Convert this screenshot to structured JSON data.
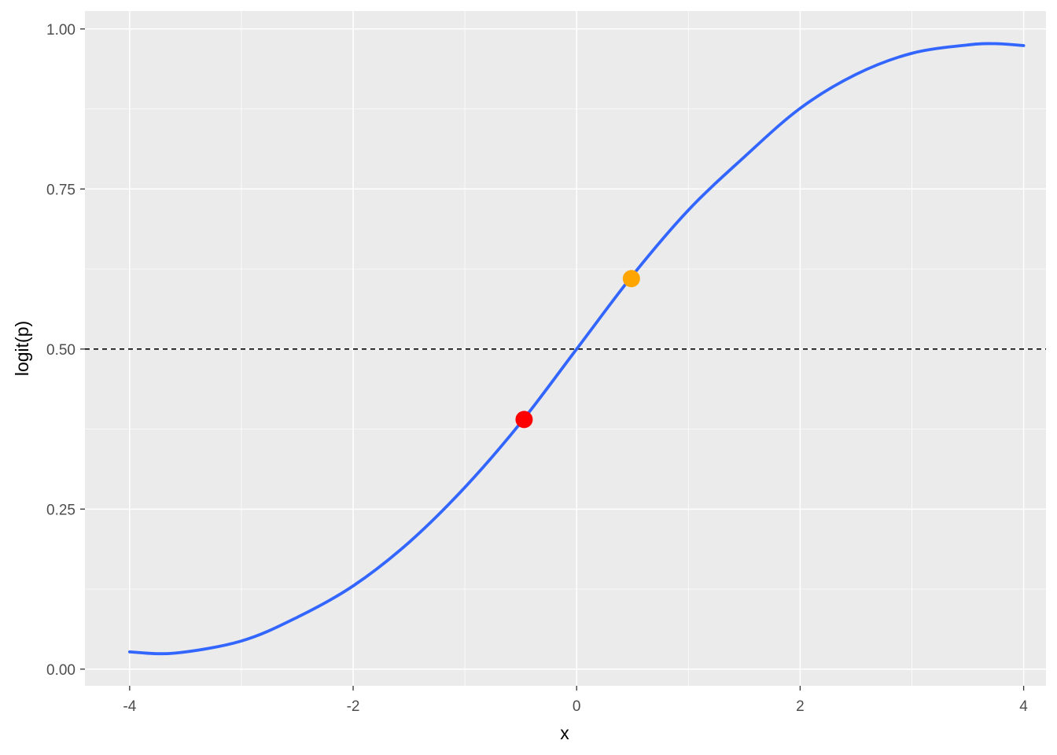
{
  "chart_data": {
    "type": "line",
    "title": "",
    "xlabel": "x",
    "ylabel": "logit(p)",
    "xlim": [
      -4.4,
      4.2
    ],
    "ylim": [
      -0.026,
      1.028
    ],
    "x_ticks": [
      -4,
      -2,
      0,
      2,
      4
    ],
    "x_tick_labels": [
      "-4",
      "-2",
      "0",
      "2",
      "4"
    ],
    "y_ticks": [
      0,
      0.25,
      0.5,
      0.75,
      1
    ],
    "y_tick_labels": [
      "0.00",
      "0.25",
      "0.50",
      "0.75",
      "1.00"
    ],
    "grid": true,
    "panel_background": "#EBEBEB",
    "series": [
      {
        "type": "smooth-line",
        "color": "#3366FF",
        "x": [
          -4,
          -3.6,
          -3,
          -2.5,
          -2,
          -1.5,
          -1,
          -0.5,
          0,
          0.5,
          1,
          1.5,
          2,
          2.5,
          3,
          3.5,
          3.75,
          4
        ],
        "y": [
          0.027,
          0.025,
          0.044,
          0.081,
          0.13,
          0.198,
          0.284,
          0.385,
          0.5,
          0.615,
          0.717,
          0.8,
          0.876,
          0.929,
          0.962,
          0.975,
          0.977,
          0.974
        ]
      }
    ],
    "reference_lines": [
      {
        "orientation": "horizontal",
        "y": 0.5,
        "style": "dashed",
        "color": "#000000"
      }
    ],
    "points": [
      {
        "x": -0.47,
        "y": 0.39,
        "color": "#FF0000"
      },
      {
        "x": 0.49,
        "y": 0.61,
        "color": "#FFA500"
      }
    ]
  }
}
